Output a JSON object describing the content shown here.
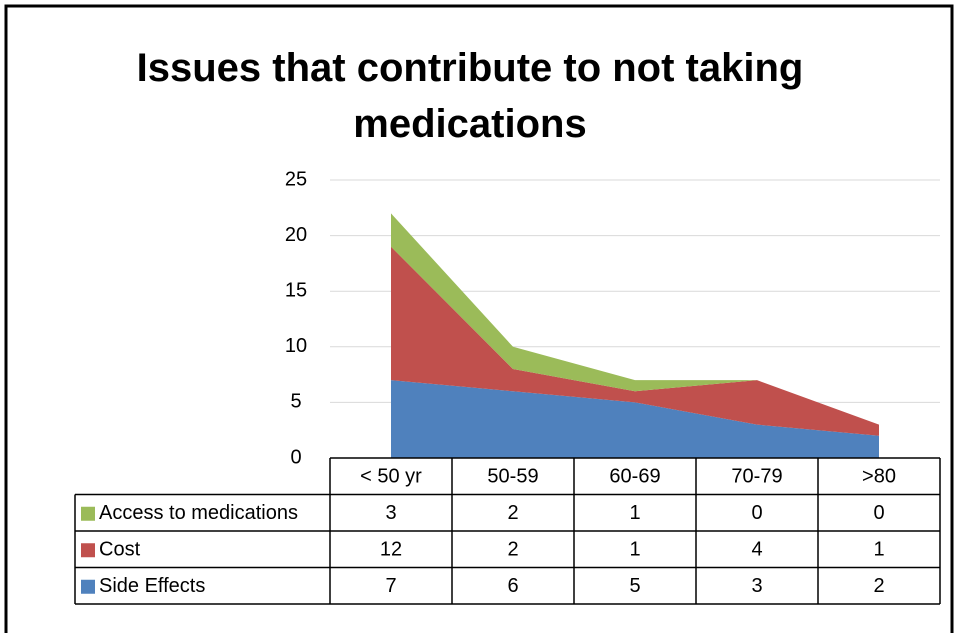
{
  "chart_data": {
    "type": "stacked_area",
    "title": "Issues that contribute to not taking medications",
    "categories": [
      "< 50 yr",
      "50-59",
      "60-69",
      "70-79",
      ">80"
    ],
    "series": [
      {
        "name": "Side Effects",
        "color": "#4f81bd",
        "values": [
          7,
          6,
          5,
          3,
          2
        ]
      },
      {
        "name": "Cost",
        "color": "#c0504d",
        "values": [
          12,
          2,
          1,
          4,
          1
        ]
      },
      {
        "name": "Access to medications",
        "color": "#9bbb59",
        "values": [
          3,
          2,
          1,
          0,
          0
        ]
      }
    ],
    "ylim": [
      0,
      25
    ],
    "yticks": [
      0,
      5,
      10,
      15,
      20,
      25
    ],
    "grid": true,
    "data_table": true
  }
}
